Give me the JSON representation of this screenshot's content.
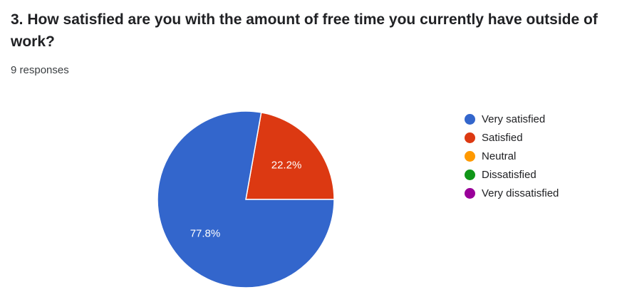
{
  "question": {
    "title": "3. How satisfied are you with the amount of free time you currently have outside of work?",
    "responses": "9 responses"
  },
  "chart_data": {
    "type": "pie",
    "title": "3. How satisfied are you with the amount of free time you currently have outside of work?",
    "categories": [
      "Very satisfied",
      "Satisfied",
      "Neutral",
      "Dissatisfied",
      "Very dissatisfied"
    ],
    "values": [
      77.8,
      22.2,
      0,
      0,
      0
    ],
    "value_labels": [
      "77.8%",
      "22.2%",
      "",
      "",
      ""
    ],
    "colors": [
      "#3366cc",
      "#dc3912",
      "#ff9900",
      "#109618",
      "#990099"
    ],
    "legend_position": "right"
  }
}
